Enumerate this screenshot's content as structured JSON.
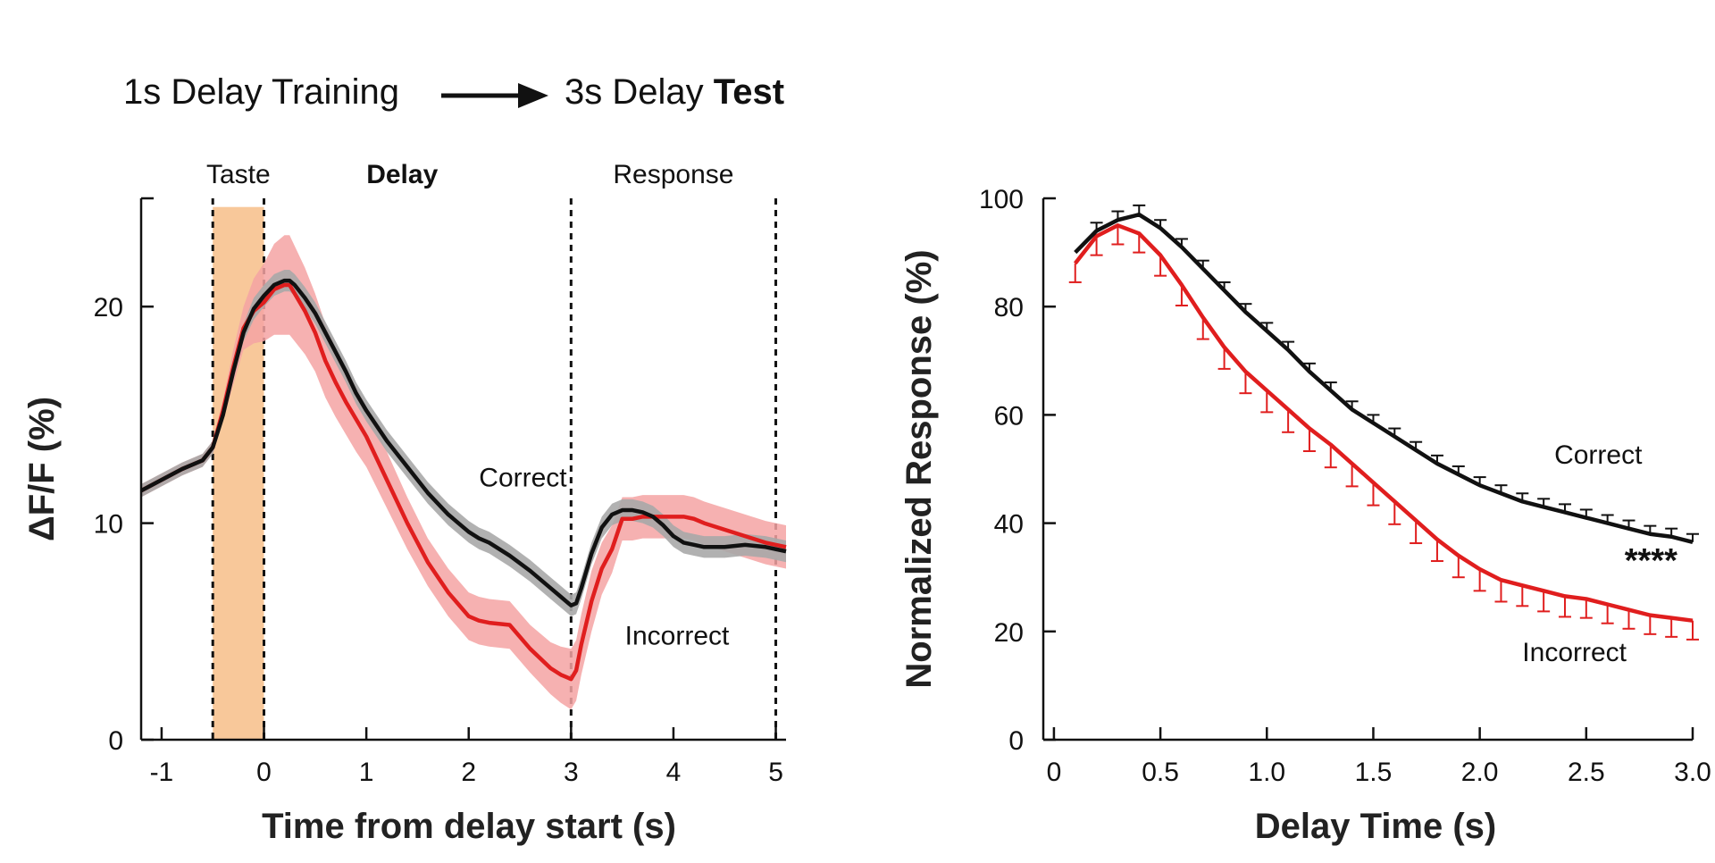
{
  "figure_title": {
    "training": "1s Delay Training",
    "test_prefix": "3s Delay ",
    "test_bold": "Test"
  },
  "colors": {
    "correct": "#111111",
    "incorrect": "#e01e1e",
    "correct_band": "#a8a8a8",
    "incorrect_band": "#f5a3a3",
    "taste_patch": "#f8c89a"
  },
  "chart_data": [
    {
      "type": "line",
      "title": "",
      "xlabel": "Time from delay start (s)",
      "ylabel": "ΔF/F (%)",
      "xlim": [
        -1.2,
        5.1
      ],
      "ylim": [
        0,
        25
      ],
      "xticks": [
        -1,
        0,
        1,
        2,
        3,
        4,
        5
      ],
      "xtick_labels": [
        "-1",
        "0",
        "1",
        "2",
        "3",
        "4",
        "5"
      ],
      "yticks": [
        0,
        10,
        20
      ],
      "ytick_labels": [
        "0",
        "10",
        "20"
      ],
      "phases": [
        {
          "label": "Taste",
          "bold": false,
          "x": -0.25
        },
        {
          "label": "Delay",
          "bold": true,
          "x": 1.35
        },
        {
          "label": "Response",
          "bold": false,
          "x": 4.0
        }
      ],
      "taste_window": [
        -0.5,
        0
      ],
      "dashed_lines": [
        -0.5,
        0,
        3,
        5
      ],
      "series": [
        {
          "name": "Correct",
          "label_at": [
            2.45,
            11.7
          ],
          "x": [
            -1.2,
            -1.0,
            -0.8,
            -0.6,
            -0.5,
            -0.4,
            -0.3,
            -0.2,
            -0.1,
            0,
            0.1,
            0.2,
            0.25,
            0.3,
            0.4,
            0.5,
            0.6,
            0.7,
            0.8,
            0.9,
            1.0,
            1.2,
            1.4,
            1.6,
            1.8,
            2.0,
            2.1,
            2.2,
            2.4,
            2.6,
            2.8,
            2.9,
            3.0,
            3.05,
            3.1,
            3.2,
            3.3,
            3.4,
            3.5,
            3.6,
            3.7,
            3.8,
            3.9,
            4.0,
            4.1,
            4.2,
            4.3,
            4.5,
            4.7,
            4.9,
            5.1
          ],
          "y": [
            11.5,
            12.0,
            12.5,
            12.9,
            13.5,
            15.0,
            17.0,
            18.8,
            19.9,
            20.5,
            21.0,
            21.2,
            21.2,
            21.0,
            20.4,
            19.7,
            18.8,
            17.9,
            17.0,
            16.0,
            15.2,
            13.8,
            12.6,
            11.4,
            10.4,
            9.6,
            9.3,
            9.1,
            8.5,
            7.8,
            7.0,
            6.6,
            6.2,
            6.3,
            7.0,
            8.6,
            9.8,
            10.4,
            10.6,
            10.6,
            10.5,
            10.3,
            9.9,
            9.4,
            9.1,
            9.0,
            8.9,
            8.9,
            9.0,
            8.9,
            8.7
          ],
          "band": [
            0.3,
            0.3,
            0.3,
            0.3,
            0.3,
            0.3,
            0.4,
            0.4,
            0.5,
            0.5,
            0.5,
            0.5,
            0.5,
            0.5,
            0.5,
            0.5,
            0.5,
            0.5,
            0.5,
            0.5,
            0.5,
            0.5,
            0.5,
            0.5,
            0.5,
            0.5,
            0.5,
            0.5,
            0.5,
            0.5,
            0.5,
            0.5,
            0.5,
            0.5,
            0.5,
            0.5,
            0.5,
            0.5,
            0.5,
            0.5,
            0.5,
            0.5,
            0.5,
            0.5,
            0.5,
            0.5,
            0.5,
            0.5,
            0.5,
            0.5,
            0.5
          ]
        },
        {
          "name": "Incorrect",
          "label_at": [
            4.05,
            4.4
          ],
          "x": [
            -1.2,
            -1.0,
            -0.8,
            -0.6,
            -0.5,
            -0.4,
            -0.3,
            -0.2,
            -0.1,
            0,
            0.1,
            0.2,
            0.25,
            0.3,
            0.4,
            0.5,
            0.6,
            0.7,
            0.8,
            0.9,
            1.0,
            1.2,
            1.4,
            1.6,
            1.8,
            2.0,
            2.1,
            2.2,
            2.4,
            2.6,
            2.8,
            2.9,
            3.0,
            3.05,
            3.1,
            3.2,
            3.3,
            3.4,
            3.5,
            3.6,
            3.7,
            3.8,
            3.9,
            4.0,
            4.1,
            4.2,
            4.3,
            4.5,
            4.7,
            4.9,
            5.1
          ],
          "y": [
            11.5,
            12.0,
            12.5,
            12.9,
            13.5,
            15.2,
            17.2,
            19.0,
            19.8,
            20.2,
            20.8,
            21.0,
            21.0,
            20.6,
            19.8,
            18.8,
            17.5,
            16.5,
            15.6,
            14.8,
            14.0,
            12.0,
            10.0,
            8.2,
            6.8,
            5.7,
            5.5,
            5.4,
            5.3,
            4.2,
            3.3,
            3.0,
            2.8,
            3.2,
            4.4,
            6.4,
            7.9,
            8.8,
            10.2,
            10.2,
            10.3,
            10.3,
            10.3,
            10.3,
            10.3,
            10.2,
            10.0,
            9.7,
            9.4,
            9.1,
            8.9
          ],
          "band": [
            0.3,
            0.3,
            0.3,
            0.3,
            0.3,
            0.5,
            0.8,
            1.0,
            1.5,
            1.8,
            2.1,
            2.3,
            2.3,
            2.2,
            2.0,
            1.8,
            1.7,
            1.6,
            1.5,
            1.5,
            1.4,
            1.3,
            1.2,
            1.1,
            1.1,
            1.1,
            1.1,
            1.1,
            1.1,
            1.1,
            1.2,
            1.3,
            1.4,
            1.4,
            1.4,
            1.4,
            1.2,
            1.1,
            1.0,
            1.0,
            1.0,
            1.0,
            1.0,
            1.0,
            1.0,
            1.0,
            1.0,
            1.0,
            1.0,
            1.0,
            1.0
          ]
        }
      ]
    },
    {
      "type": "line",
      "title": "",
      "xlabel": "Delay Time  (s)",
      "ylabel": "Normalized Response (%)",
      "xlim": [
        -0.05,
        3.0
      ],
      "ylim": [
        0,
        100
      ],
      "xticks": [
        0,
        0.5,
        1.0,
        1.5,
        2.0,
        2.5,
        3.0
      ],
      "xtick_labels": [
        "0",
        "0.5",
        "1.0",
        "1.5",
        "2.0",
        "2.5",
        "3.0"
      ],
      "yticks": [
        0,
        20,
        40,
        60,
        80,
        100
      ],
      "ytick_labels": [
        "0",
        "20",
        "40",
        "60",
        "80",
        "100"
      ],
      "significance": {
        "text": "****",
        "x": 2.68,
        "y": 31
      },
      "series": [
        {
          "name": "Correct",
          "label_at": [
            2.35,
            51
          ],
          "x": [
            0.1,
            0.2,
            0.3,
            0.4,
            0.5,
            0.6,
            0.7,
            0.8,
            0.9,
            1.0,
            1.1,
            1.2,
            1.3,
            1.4,
            1.5,
            1.6,
            1.7,
            1.8,
            1.9,
            2.0,
            2.1,
            2.2,
            2.3,
            2.4,
            2.5,
            2.6,
            2.7,
            2.8,
            2.9,
            3.0
          ],
          "y": [
            90.0,
            94.0,
            96.0,
            97.0,
            94.5,
            91.0,
            87.0,
            83.0,
            79.0,
            75.5,
            72.0,
            68.0,
            64.5,
            61.0,
            58.5,
            56.0,
            53.5,
            51.0,
            49.0,
            47.0,
            45.5,
            44.0,
            43.0,
            42.0,
            41.0,
            40.0,
            39.0,
            38.0,
            37.5,
            36.5
          ],
          "err": [
            0,
            1.5,
            1.6,
            1.7,
            1.5,
            1.5,
            1.5,
            1.5,
            1.5,
            1.5,
            1.5,
            1.5,
            1.5,
            1.5,
            1.5,
            1.5,
            1.5,
            1.5,
            1.5,
            1.5,
            1.5,
            1.5,
            1.5,
            1.5,
            1.5,
            1.5,
            1.5,
            1.5,
            1.5,
            1.5
          ]
        },
        {
          "name": "Incorrect",
          "label_at": [
            2.2,
            14.5
          ],
          "x": [
            0.1,
            0.2,
            0.3,
            0.4,
            0.5,
            0.6,
            0.7,
            0.8,
            0.9,
            1.0,
            1.1,
            1.2,
            1.3,
            1.4,
            1.5,
            1.6,
            1.7,
            1.8,
            1.9,
            2.0,
            2.1,
            2.2,
            2.3,
            2.4,
            2.5,
            2.6,
            2.7,
            2.8,
            2.9,
            3.0
          ],
          "y": [
            88.0,
            93.0,
            95.0,
            93.5,
            89.5,
            84.0,
            78.0,
            72.5,
            68.0,
            64.5,
            61.0,
            57.5,
            54.5,
            51.0,
            47.5,
            44.0,
            40.5,
            37.0,
            34.0,
            31.5,
            29.5,
            28.5,
            27.5,
            26.5,
            26.0,
            25.0,
            24.0,
            23.0,
            22.5,
            22.0
          ],
          "err": [
            3.5,
            3.5,
            3.5,
            3.5,
            3.8,
            3.8,
            4.0,
            4.0,
            4.0,
            4.0,
            4.2,
            4.2,
            4.2,
            4.2,
            4.2,
            4.2,
            4.2,
            4.0,
            4.0,
            4.0,
            4.0,
            3.8,
            3.8,
            3.8,
            3.5,
            3.5,
            3.5,
            3.5,
            3.5,
            3.5
          ]
        }
      ]
    }
  ]
}
